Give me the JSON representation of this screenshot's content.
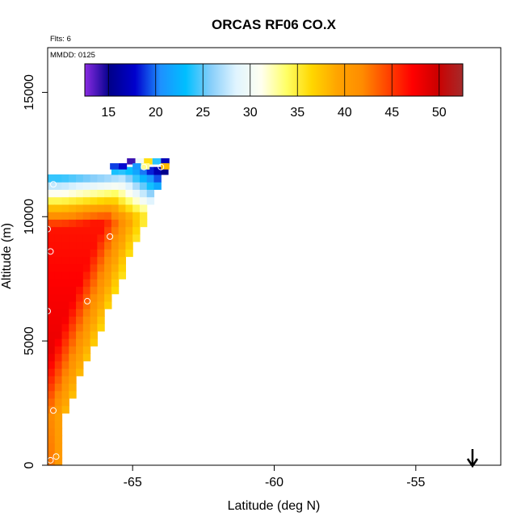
{
  "chart_data": {
    "type": "heatmap",
    "title": "ORCAS RF06 CO.X",
    "xlabel": "Latitude (deg N)",
    "ylabel": "Altitude (m)",
    "flights_label": "Flts: 6",
    "date_label": "MMDD: 0125",
    "xlim": [
      -68,
      -52
    ],
    "ylim": [
      0,
      16800
    ],
    "x_ticks": [
      -65,
      -60,
      -55
    ],
    "y_ticks": [
      0,
      5000,
      10000,
      15000
    ],
    "x_tick_labels": [
      "-65",
      "-60",
      "-55"
    ],
    "y_tick_labels": [
      "0",
      "5000",
      "10000",
      "15000"
    ],
    "colorbar": {
      "range": [
        12.5,
        52.5
      ],
      "ticks": [
        15,
        20,
        25,
        30,
        35,
        40,
        45,
        50
      ],
      "tick_labels": [
        "15",
        "20",
        "25",
        "30",
        "35",
        "40",
        "45",
        "50"
      ],
      "colors": [
        "#8a2be2",
        "#00008b",
        "#0000cd",
        "#1e90ff",
        "#00bfff",
        "#87cefa",
        "#e0f4ff",
        "#fffff0",
        "#ffff66",
        "#ffd700",
        "#ffa500",
        "#ff8c00",
        "#ff4500",
        "#ff0000",
        "#cc0000",
        "#a52a2a"
      ]
    },
    "grid": false,
    "marker_arrow_lat": -53.3,
    "sample_points": [
      {
        "lat": -67.8,
        "alt": 11300
      },
      {
        "lat": -65.8,
        "alt": 9200
      },
      {
        "lat": -67.9,
        "alt": 8600
      },
      {
        "lat": -66.6,
        "alt": 6600
      },
      {
        "lat": -68.0,
        "alt": 6200
      },
      {
        "lat": -67.8,
        "alt": 2200
      },
      {
        "lat": -67.7,
        "alt": 350
      },
      {
        "lat": -67.9,
        "alt": 200
      },
      {
        "lat": -64.6,
        "alt": 12000
      },
      {
        "lat": -64.0,
        "alt": 12000
      },
      {
        "lat": -68.0,
        "alt": 9500
      }
    ]
  }
}
